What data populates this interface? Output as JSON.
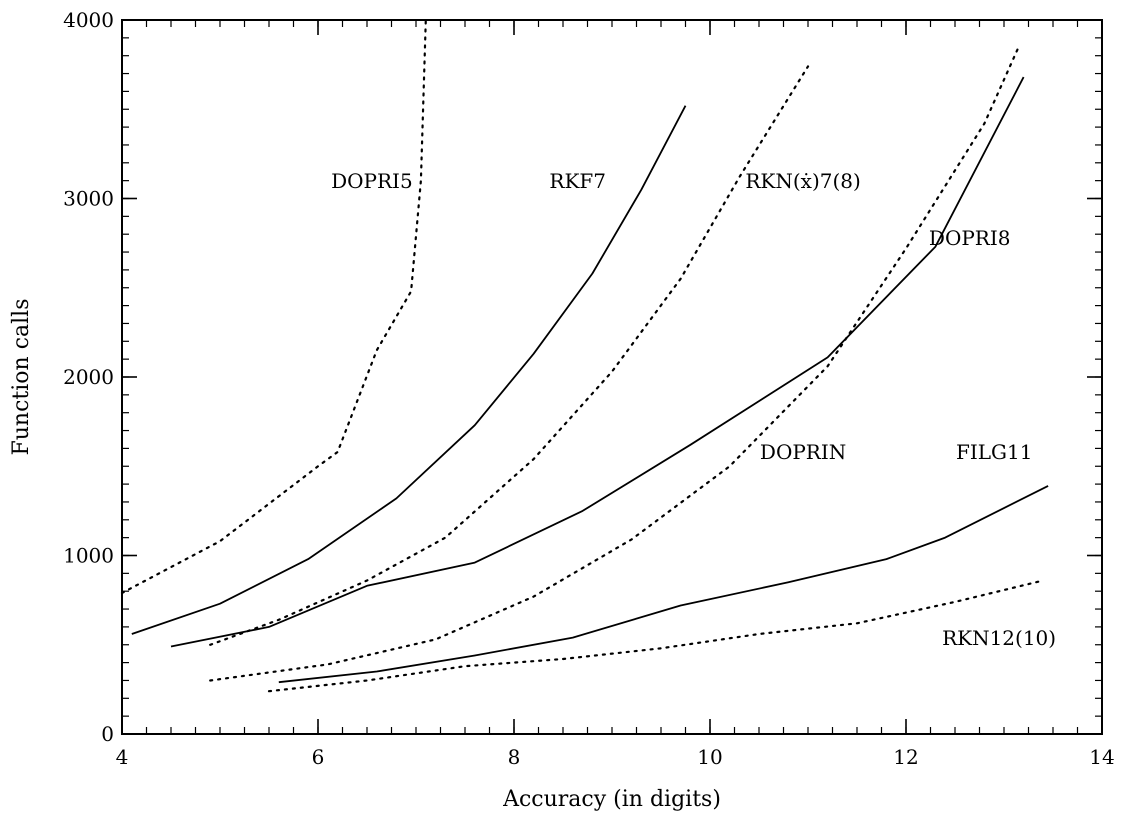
{
  "chart_data": {
    "type": "line",
    "title": "",
    "xlabel": "Accuracy (in digits)",
    "ylabel": "Function calls",
    "xlim": [
      4,
      14
    ],
    "ylim": [
      0,
      4000
    ],
    "xticks": [
      "4",
      "6",
      "8",
      "10",
      "12",
      "14"
    ],
    "yticks": [
      "0",
      "1000",
      "2000",
      "3000",
      "4000"
    ],
    "grid": false,
    "series": [
      {
        "name": "DOPRI5",
        "style": "dotted",
        "x": [
          4.0,
          5.0,
          6.0,
          6.2,
          6.6,
          6.95,
          7.05,
          7.1
        ],
        "y": [
          790,
          1080,
          1500,
          1580,
          2150,
          2480,
          3100,
          4000
        ]
      },
      {
        "name": "RKF7",
        "style": "solid",
        "x": [
          4.1,
          5.0,
          5.9,
          6.8,
          7.6,
          8.2,
          8.8,
          9.3,
          9.75
        ],
        "y": [
          560,
          730,
          980,
          1320,
          1730,
          2130,
          2580,
          3050,
          3520
        ]
      },
      {
        "name": "RKN(ẋ)7(8)",
        "style": "dotted",
        "x": [
          4.9,
          5.6,
          6.5,
          7.3,
          8.2,
          9.0,
          9.7,
          10.3,
          11.0
        ],
        "y": [
          500,
          640,
          860,
          1100,
          1540,
          2030,
          2550,
          3120,
          3740
        ]
      },
      {
        "name": "DOPRI8",
        "style": "solid",
        "x": [
          4.5,
          5.5,
          6.5,
          7.6,
          8.7,
          9.8,
          11.2,
          12.3,
          13.2
        ],
        "y": [
          490,
          600,
          830,
          960,
          1250,
          1620,
          2110,
          2730,
          3680
        ]
      },
      {
        "name": "DOPRIN",
        "style": "dotted",
        "x": [
          4.9,
          6.1,
          7.2,
          8.2,
          9.2,
          10.2,
          11.2,
          12.0,
          12.8,
          13.15
        ],
        "y": [
          300,
          390,
          530,
          770,
          1090,
          1500,
          2060,
          2720,
          3420,
          3850
        ]
      },
      {
        "name": "FILG11",
        "style": "solid",
        "x": [
          5.6,
          6.6,
          7.6,
          8.6,
          9.7,
          10.8,
          11.8,
          12.4,
          13.45
        ],
        "y": [
          290,
          350,
          440,
          540,
          720,
          850,
          980,
          1100,
          1390
        ]
      },
      {
        "name": "RKN12(10)",
        "style": "dotted",
        "x": [
          5.5,
          6.5,
          7.5,
          8.5,
          9.5,
          10.5,
          11.5,
          12.5,
          13.4
        ],
        "y": [
          240,
          300,
          380,
          420,
          480,
          560,
          620,
          740,
          860
        ]
      }
    ],
    "annotations": [
      {
        "text": "DOPRI5",
        "x": 6.55,
        "y": 3060
      },
      {
        "text": "RKF7",
        "x": 8.65,
        "y": 3060
      },
      {
        "text": "RKN(ẋ)7(8)",
        "x": 10.95,
        "y": 3060
      },
      {
        "text": "DOPRI8",
        "x": 12.65,
        "y": 2740
      },
      {
        "text": "DOPRIN",
        "x": 10.95,
        "y": 1540
      },
      {
        "text": "FILG11",
        "x": 12.9,
        "y": 1540
      },
      {
        "text": "RKN12(10)",
        "x": 12.95,
        "y": 500
      }
    ]
  }
}
